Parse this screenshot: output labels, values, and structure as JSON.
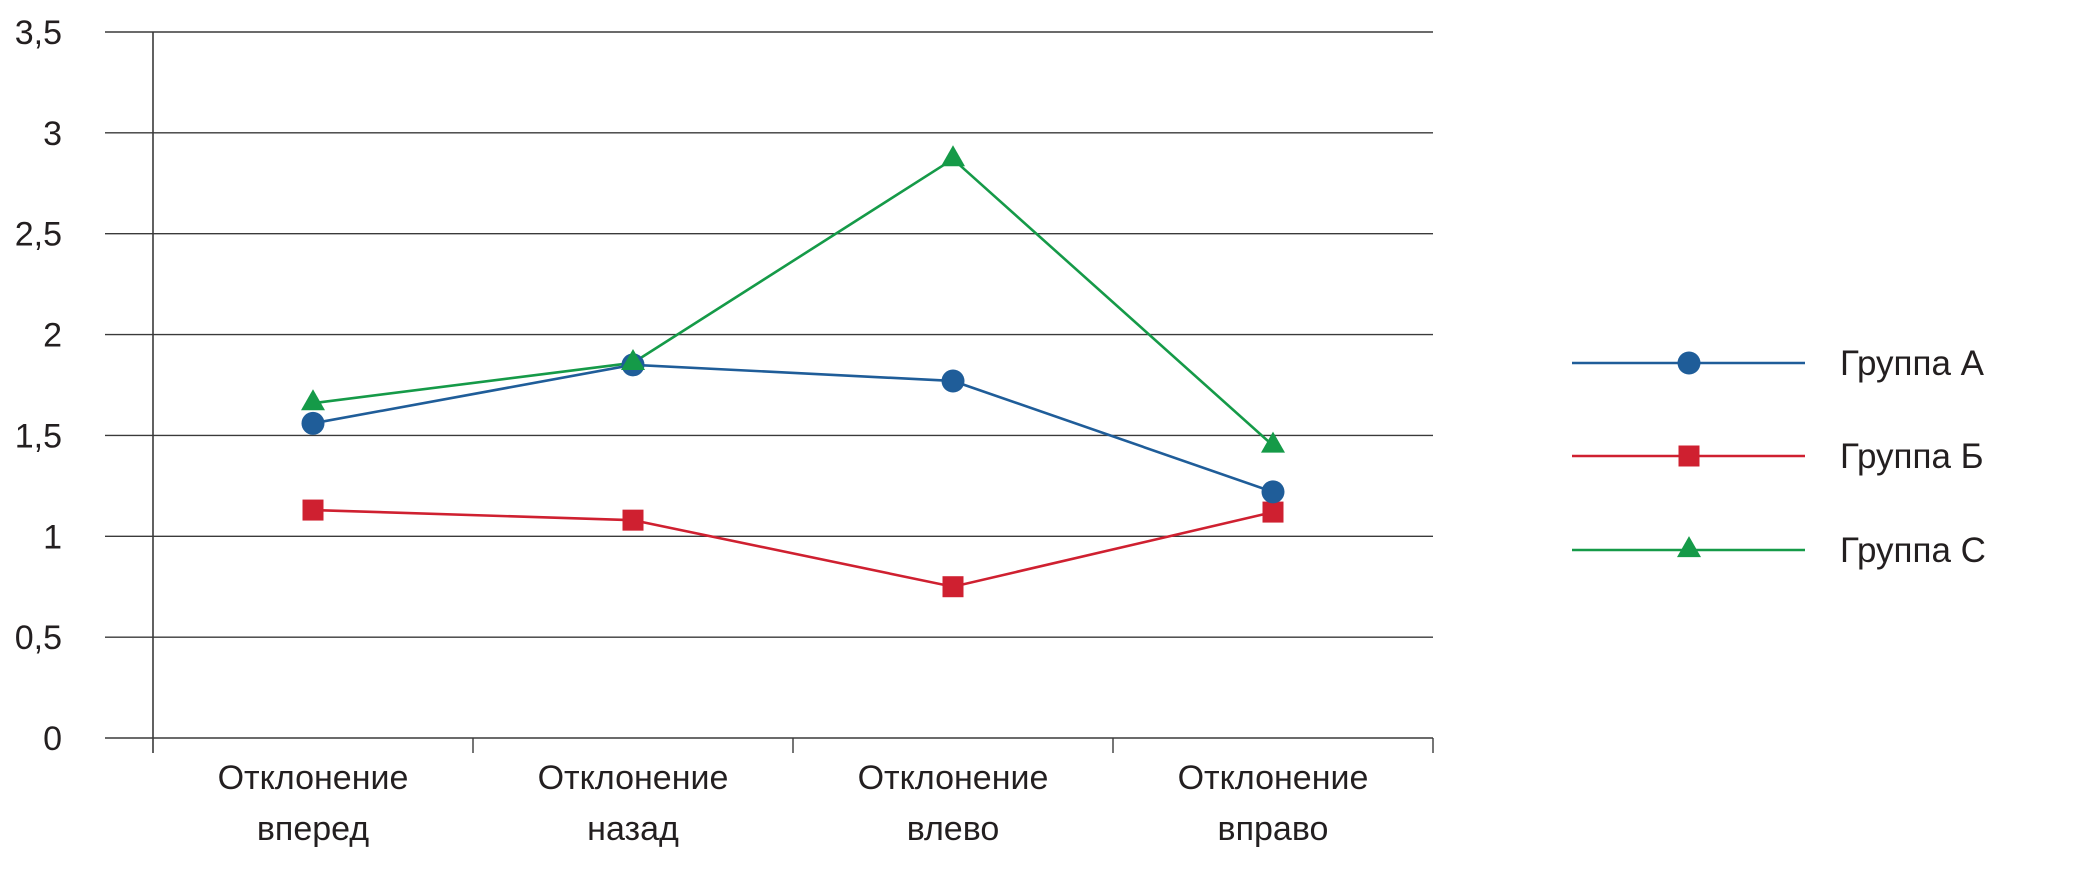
{
  "chart_data": {
    "type": "line",
    "categories": [
      [
        "Отклонение",
        "вперед"
      ],
      [
        "Отклонение",
        "назад"
      ],
      [
        "Отклонение",
        "влево"
      ],
      [
        "Отклонение",
        "вправо"
      ]
    ],
    "y_ticks": [
      "0",
      "0,5",
      "1",
      "1,5",
      "2",
      "2,5",
      "3",
      "3,5"
    ],
    "ylim": [
      0,
      3.5
    ],
    "grid": true,
    "legend_position": "right",
    "series": [
      {
        "name": "Группа А",
        "values": [
          1.56,
          1.85,
          1.77,
          1.22
        ],
        "color": "#1f5d99",
        "marker": "circle"
      },
      {
        "name": "Группа Б",
        "values": [
          1.13,
          1.08,
          0.75,
          1.12
        ],
        "color": "#cf2030",
        "marker": "square"
      },
      {
        "name": "Группа С",
        "values": [
          1.66,
          1.86,
          2.87,
          1.45
        ],
        "color": "#159a48",
        "marker": "triangle"
      }
    ]
  }
}
